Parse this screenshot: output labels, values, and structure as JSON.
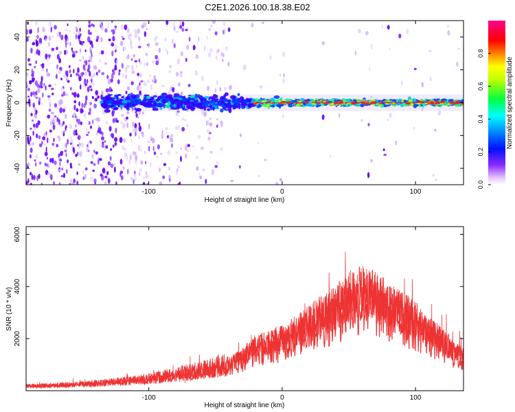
{
  "title": "C2E1.2026.100.18.38.E02",
  "chart_data": [
    {
      "type": "heatmap",
      "name": "spectrogram",
      "xlabel": "Height of straight line (km)",
      "ylabel": "Frequency (Hz)",
      "xlim": [
        -192,
        136
      ],
      "ylim": [
        -50,
        50
      ],
      "xticks": [
        -100,
        0,
        100
      ],
      "xtick_labels": [
        "-100",
        "0",
        "100"
      ],
      "yticks": [
        -40,
        -20,
        0,
        20,
        40
      ],
      "ytick_labels": [
        "-40",
        "-20",
        "0",
        "20",
        "40"
      ],
      "grid": false,
      "description_values": {
        "band_center_hz": 0,
        "band_halfwidth_hz": 3,
        "band_start_km": -135,
        "noise_fade_km": -40
      },
      "colorbar": {
        "label": "Normalized spectral amplitude",
        "range": [
          0.0,
          1.0
        ],
        "ticks": [
          0.0,
          0.2,
          0.4,
          0.6,
          0.8
        ],
        "tick_labels": [
          "0.0",
          "0.2",
          "0.4",
          "0.6",
          "0.8"
        ],
        "colormap": [
          "#ffffff",
          "#7a00ff",
          "#0000ff",
          "#00e0ff",
          "#00ff40",
          "#ffff00",
          "#ff8000",
          "#ff0000",
          "#ff0090"
        ]
      }
    },
    {
      "type": "line",
      "name": "snr",
      "xlabel": "Height of straight line (km)",
      "ylabel": "SNR (10 * v/v)",
      "xlim": [
        -192,
        136
      ],
      "ylim": [
        0,
        6300
      ],
      "xticks": [
        -100,
        0,
        100
      ],
      "xtick_labels": [
        "-100",
        "0",
        "100"
      ],
      "yticks": [
        2000,
        4000,
        6000
      ],
      "ytick_labels": [
        "2000",
        "4000",
        "6000"
      ],
      "grid": false,
      "color": "#ee3333",
      "series": [
        {
          "name": "SNR",
          "x": [
            -192,
            -180,
            -160,
            -140,
            -120,
            -100,
            -80,
            -60,
            -40,
            -30,
            -20,
            -10,
            0,
            10,
            20,
            30,
            40,
            50,
            60,
            70,
            80,
            90,
            100,
            110,
            120,
            130,
            136
          ],
          "y": [
            180,
            200,
            230,
            280,
            360,
            460,
            620,
            800,
            1000,
            1300,
            1700,
            1800,
            2000,
            2300,
            2600,
            2900,
            3200,
            3600,
            3800,
            3600,
            3300,
            3000,
            2700,
            2300,
            1900,
            1500,
            1300
          ]
        }
      ]
    }
  ]
}
